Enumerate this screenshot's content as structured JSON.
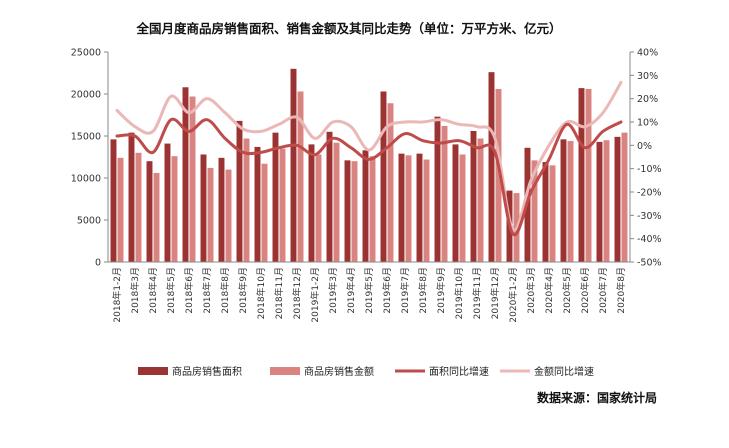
{
  "chart_data": {
    "type": "bar",
    "title": "全国月度商品房销售面积、销售金额及其同比走势（单位：万平方米、亿元）",
    "source": "数据来源：国家统计局",
    "categories": [
      "2018年1-2月",
      "2018年3月",
      "2018年4月",
      "2018年5月",
      "2018年6月",
      "2018年7月",
      "2018年8月",
      "2018年9月",
      "2018年10月",
      "2018年11月",
      "2018年12月",
      "2019年1-2月",
      "2019年3月",
      "2019年4月",
      "2019年5月",
      "2019年6月",
      "2019年7月",
      "2019年8月",
      "2019年9月",
      "2019年10月",
      "2019年11月",
      "2019年12月",
      "2020年1-2月",
      "2020年3月",
      "2020年4月",
      "2020年5月",
      "2020年6月",
      "2020年7月",
      "2020年8月"
    ],
    "y_left": {
      "ylim": [
        0,
        25000
      ],
      "ticks": [
        "0",
        "5000",
        "10000",
        "15000",
        "20000",
        "25000"
      ]
    },
    "y_right": {
      "ylim": [
        -50,
        40
      ],
      "ticks": [
        "-50%",
        "-40%",
        "-30%",
        "-20%",
        "-10%",
        "0%",
        "10%",
        "20%",
        "30%",
        "40%"
      ]
    },
    "series": [
      {
        "name": "商品房销售面积",
        "kind": "bar",
        "axis": "left",
        "color": "#9c3333",
        "values": [
          14600,
          15400,
          12000,
          14100,
          20800,
          12800,
          12400,
          16800,
          13700,
          15400,
          23000,
          14000,
          15500,
          12100,
          13300,
          20300,
          12900,
          12900,
          17300,
          14000,
          15600,
          22600,
          8500,
          13600,
          11900,
          14600,
          20700,
          14300,
          14900
        ]
      },
      {
        "name": "商品房销售金额",
        "kind": "bar",
        "axis": "left",
        "color": "#d98480",
        "values": [
          12400,
          13000,
          10600,
          12600,
          19700,
          11200,
          11000,
          14700,
          11700,
          13500,
          20300,
          12800,
          14200,
          12000,
          12600,
          18900,
          12700,
          12200,
          16200,
          12800,
          14700,
          20600,
          8200,
          12100,
          11500,
          14400,
          20600,
          14500,
          15400
        ]
      },
      {
        "name": "面积同比增速",
        "kind": "line",
        "axis": "right",
        "color": "#bf4b4b",
        "values": [
          4,
          4,
          -3,
          11,
          6,
          11,
          3,
          -3,
          -3,
          -1,
          0,
          -4,
          3,
          -1,
          -6,
          -1,
          5,
          2,
          1,
          2,
          -1,
          -3,
          -38,
          -20,
          -6,
          9,
          -1,
          6,
          10
        ]
      },
      {
        "name": "金额同比增速",
        "kind": "line",
        "axis": "right",
        "color": "#eab8b6",
        "values": [
          15,
          8,
          6,
          21,
          14,
          20,
          14,
          7,
          6,
          9,
          12,
          3,
          10,
          8,
          -2,
          8,
          10,
          10,
          11,
          9,
          8,
          3,
          -36,
          -15,
          0,
          10,
          8,
          14,
          27
        ]
      }
    ],
    "legend_position": "bottom",
    "grid": false
  }
}
